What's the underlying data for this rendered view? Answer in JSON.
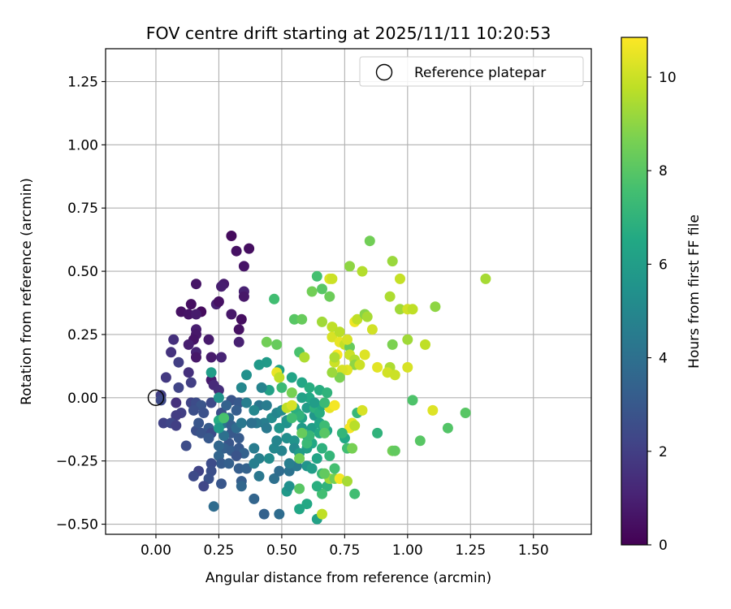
{
  "chart_data": {
    "type": "scatter",
    "title": "FOV centre drift starting at 2025/11/11 10:20:53",
    "xlabel": "Angular distance from reference (arcmin)",
    "ylabel": "Rotation from reference (arcmin)",
    "xlim": [
      -0.2,
      1.73
    ],
    "ylim": [
      -0.54,
      1.38
    ],
    "xticks": [
      "0.00",
      "0.25",
      "0.50",
      "0.75",
      "1.00",
      "1.25",
      "1.50"
    ],
    "yticks": [
      "−0.50",
      "−0.25",
      "0.00",
      "0.25",
      "0.50",
      "0.75",
      "1.00",
      "1.25"
    ],
    "grid": true,
    "legend_position": "top-right",
    "legend_entries": [
      "Reference platepar"
    ],
    "reference_point": {
      "x": 0.0,
      "y": 0.0
    },
    "colorbar": {
      "label": "Hours from first FF file",
      "colormap": "viridis",
      "range": [
        0,
        10.85
      ],
      "ticks": [
        "0",
        "2",
        "4",
        "6",
        "8",
        "10"
      ]
    },
    "points": [
      [
        0.3,
        0.64,
        0.3
      ],
      [
        0.37,
        0.59,
        0.4
      ],
      [
        0.32,
        0.58,
        0.5
      ],
      [
        0.35,
        0.52,
        0.6
      ],
      [
        0.27,
        0.45,
        0.8
      ],
      [
        0.26,
        0.44,
        0.9
      ],
      [
        0.35,
        0.42,
        1.0
      ],
      [
        0.35,
        0.4,
        0.7
      ],
      [
        0.16,
        0.45,
        0.6
      ],
      [
        0.14,
        0.37,
        0.4
      ],
      [
        0.1,
        0.34,
        0.5
      ],
      [
        0.13,
        0.33,
        0.6
      ],
      [
        0.18,
        0.34,
        0.3
      ],
      [
        0.16,
        0.33,
        0.8
      ],
      [
        0.24,
        0.37,
        1.0
      ],
      [
        0.25,
        0.38,
        0.5
      ],
      [
        0.3,
        0.33,
        0.7
      ],
      [
        0.34,
        0.31,
        0.4
      ],
      [
        0.33,
        0.27,
        0.5
      ],
      [
        0.16,
        0.27,
        0.9
      ],
      [
        0.16,
        0.25,
        0.7
      ],
      [
        0.21,
        0.23,
        0.8
      ],
      [
        0.15,
        0.23,
        0.6
      ],
      [
        0.13,
        0.21,
        0.9
      ],
      [
        0.33,
        0.22,
        1.0
      ],
      [
        0.07,
        0.23,
        1.5
      ],
      [
        0.16,
        0.18,
        1.1
      ],
      [
        0.06,
        0.18,
        1.6
      ],
      [
        0.16,
        0.16,
        0.7
      ],
      [
        0.22,
        0.16,
        0.8
      ],
      [
        0.26,
        0.16,
        1.1
      ],
      [
        0.09,
        0.14,
        2.0
      ],
      [
        0.13,
        0.1,
        1.5
      ],
      [
        0.04,
        0.08,
        1.8
      ],
      [
        0.22,
        0.07,
        0.8
      ],
      [
        0.23,
        0.05,
        1.3
      ],
      [
        0.14,
        0.06,
        2.0
      ],
      [
        0.09,
        0.04,
        2.2
      ],
      [
        0.25,
        0.03,
        1.4
      ],
      [
        0.02,
        0.01,
        2.0
      ],
      [
        0.02,
        -0.01,
        2.4
      ],
      [
        0.08,
        -0.02,
        1.5
      ],
      [
        0.14,
        -0.02,
        2.2
      ],
      [
        0.16,
        -0.02,
        2.5
      ],
      [
        0.18,
        -0.03,
        2.8
      ],
      [
        0.15,
        -0.05,
        2.6
      ],
      [
        0.1,
        -0.06,
        2.0
      ],
      [
        0.19,
        -0.06,
        2.7
      ],
      [
        0.22,
        -0.02,
        2.4
      ],
      [
        0.26,
        -0.06,
        2.6
      ],
      [
        0.3,
        -0.01,
        2.8
      ],
      [
        0.33,
        -0.02,
        3.0
      ],
      [
        0.28,
        -0.03,
        3.4
      ],
      [
        0.32,
        -0.05,
        3.2
      ],
      [
        0.08,
        -0.07,
        1.9
      ],
      [
        0.03,
        -0.1,
        2.1
      ],
      [
        0.06,
        -0.1,
        2.3
      ],
      [
        0.08,
        -0.11,
        2.0
      ],
      [
        0.16,
        -0.13,
        2.6
      ],
      [
        0.17,
        -0.1,
        2.9
      ],
      [
        0.21,
        -0.12,
        3.1
      ],
      [
        0.18,
        -0.14,
        2.8
      ],
      [
        0.22,
        -0.14,
        2.5
      ],
      [
        0.26,
        -0.09,
        3.5
      ],
      [
        0.27,
        -0.1,
        4.2
      ],
      [
        0.29,
        -0.08,
        3.7
      ],
      [
        0.3,
        -0.11,
        3.3
      ],
      [
        0.3,
        -0.14,
        3.0
      ],
      [
        0.32,
        -0.12,
        3.8
      ],
      [
        0.34,
        -0.1,
        4.3
      ],
      [
        0.33,
        -0.16,
        3.1
      ],
      [
        0.29,
        -0.18,
        2.9
      ],
      [
        0.27,
        -0.2,
        3.3
      ],
      [
        0.25,
        -0.19,
        3.6
      ],
      [
        0.3,
        -0.21,
        3.2
      ],
      [
        0.33,
        -0.2,
        3.0
      ],
      [
        0.35,
        -0.22,
        3.4
      ],
      [
        0.32,
        -0.23,
        2.8
      ],
      [
        0.25,
        -0.23,
        3.5
      ],
      [
        0.26,
        -0.26,
        3.1
      ],
      [
        0.29,
        -0.26,
        3.3
      ],
      [
        0.33,
        -0.28,
        3.2
      ],
      [
        0.36,
        -0.28,
        3.4
      ],
      [
        0.22,
        -0.26,
        2.5
      ],
      [
        0.22,
        -0.29,
        2.6
      ],
      [
        0.21,
        -0.32,
        2.7
      ],
      [
        0.17,
        -0.29,
        2.2
      ],
      [
        0.15,
        -0.31,
        2.4
      ],
      [
        0.19,
        -0.35,
        2.3
      ],
      [
        0.26,
        -0.34,
        2.9
      ],
      [
        0.34,
        -0.33,
        3.2
      ],
      [
        0.34,
        -0.35,
        3.6
      ],
      [
        0.23,
        -0.43,
        3.8
      ],
      [
        0.39,
        -0.4,
        3.5
      ],
      [
        0.43,
        -0.46,
        3.4
      ],
      [
        0.49,
        -0.46,
        3.8
      ],
      [
        0.12,
        -0.19,
        2.5
      ],
      [
        0.21,
        -0.16,
        3.0
      ],
      [
        0.27,
        -0.15,
        4.0
      ],
      [
        0.39,
        -0.2,
        4.5
      ],
      [
        0.41,
        -0.24,
        4.7
      ],
      [
        0.39,
        -0.26,
        4.6
      ],
      [
        0.41,
        -0.31,
        4.3
      ],
      [
        0.47,
        -0.32,
        4.0
      ],
      [
        0.49,
        -0.29,
        3.8
      ],
      [
        0.53,
        -0.29,
        4.1
      ],
      [
        0.56,
        -0.27,
        4.4
      ],
      [
        0.53,
        -0.26,
        4.6
      ],
      [
        0.5,
        -0.21,
        4.8
      ],
      [
        0.47,
        -0.2,
        5.0
      ],
      [
        0.45,
        -0.24,
        5.2
      ],
      [
        0.48,
        -0.17,
        4.9
      ],
      [
        0.52,
        -0.16,
        5.3
      ],
      [
        0.55,
        -0.17,
        5.5
      ],
      [
        0.55,
        -0.2,
        5.1
      ],
      [
        0.52,
        -0.1,
        5.4
      ],
      [
        0.49,
        -0.12,
        5.6
      ],
      [
        0.46,
        -0.08,
        5.2
      ],
      [
        0.43,
        -0.1,
        4.6
      ],
      [
        0.4,
        -0.1,
        4.4
      ],
      [
        0.38,
        -0.1,
        4.0
      ],
      [
        0.44,
        -0.12,
        4.4
      ],
      [
        0.41,
        -0.03,
        4.2
      ],
      [
        0.44,
        -0.03,
        4.5
      ],
      [
        0.48,
        -0.06,
        4.9
      ],
      [
        0.5,
        -0.05,
        5.1
      ],
      [
        0.52,
        -0.09,
        5.5
      ],
      [
        0.56,
        -0.06,
        5.9
      ],
      [
        0.58,
        -0.08,
        6.2
      ],
      [
        0.6,
        -0.04,
        6.0
      ],
      [
        0.63,
        -0.07,
        5.7
      ],
      [
        0.58,
        -0.12,
        5.8
      ],
      [
        0.6,
        -0.15,
        6.4
      ],
      [
        0.62,
        -0.12,
        6.0
      ],
      [
        0.65,
        -0.1,
        6.3
      ],
      [
        0.65,
        -0.14,
        6.6
      ],
      [
        0.62,
        -0.18,
        6.5
      ],
      [
        0.6,
        -0.2,
        6.1
      ],
      [
        0.57,
        -0.22,
        5.9
      ],
      [
        0.6,
        -0.27,
        5.6
      ],
      [
        0.62,
        -0.28,
        6.0
      ],
      [
        0.64,
        -0.24,
        6.3
      ],
      [
        0.66,
        -0.2,
        6.9
      ],
      [
        0.69,
        -0.23,
        7.1
      ],
      [
        0.66,
        -0.3,
        7.2
      ],
      [
        0.68,
        -0.35,
        7.0
      ],
      [
        0.66,
        -0.38,
        7.5
      ],
      [
        0.64,
        -0.35,
        6.8
      ],
      [
        0.6,
        -0.42,
        6.5
      ],
      [
        0.64,
        -0.48,
        6.2
      ],
      [
        0.57,
        -0.44,
        6.4
      ],
      [
        0.52,
        -0.37,
        5.8
      ],
      [
        0.53,
        -0.35,
        5.4
      ],
      [
        0.69,
        -0.32,
        9.3
      ],
      [
        0.66,
        -0.46,
        9.8
      ],
      [
        0.71,
        -0.32,
        8.5
      ],
      [
        0.73,
        -0.32,
        10.7
      ],
      [
        0.76,
        -0.33,
        9.4
      ],
      [
        0.79,
        -0.38,
        7.5
      ],
      [
        0.71,
        -0.28,
        7.6
      ],
      [
        0.57,
        -0.36,
        8.0
      ],
      [
        0.67,
        -0.3,
        8.2
      ],
      [
        0.6,
        -0.18,
        7.3
      ],
      [
        0.61,
        -0.15,
        7.2
      ],
      [
        0.57,
        -0.24,
        8.5
      ],
      [
        0.58,
        -0.14,
        8.3
      ],
      [
        0.57,
        -0.07,
        7.0
      ],
      [
        0.55,
        -0.04,
        6.8
      ],
      [
        0.54,
        -0.08,
        7.5
      ],
      [
        0.52,
        -0.04,
        9.8
      ],
      [
        0.54,
        -0.03,
        10.2
      ],
      [
        0.63,
        -0.04,
        6.9
      ],
      [
        0.65,
        -0.06,
        6.7
      ],
      [
        0.66,
        -0.03,
        6.5
      ],
      [
        0.69,
        -0.04,
        10.5
      ],
      [
        0.68,
        -0.13,
        6.4
      ],
      [
        0.67,
        -0.11,
        7.4
      ],
      [
        0.67,
        -0.14,
        8.0
      ],
      [
        0.61,
        0.0,
        6.5
      ],
      [
        0.58,
        0.0,
        6.2
      ],
      [
        0.63,
        -0.02,
        6.0
      ],
      [
        0.65,
        0.03,
        6.7
      ],
      [
        0.68,
        0.02,
        7.0
      ],
      [
        0.67,
        -0.02,
        7.3
      ],
      [
        0.58,
        0.06,
        6.4
      ],
      [
        0.61,
        0.04,
        6.7
      ],
      [
        0.54,
        0.08,
        6.3
      ],
      [
        0.49,
        0.11,
        6.2
      ],
      [
        0.44,
        0.14,
        5.9
      ],
      [
        0.48,
        0.1,
        10.5
      ],
      [
        0.49,
        0.08,
        9.8
      ],
      [
        0.54,
        0.02,
        8.6
      ],
      [
        0.5,
        0.04,
        7.3
      ],
      [
        0.45,
        0.03,
        6.2
      ],
      [
        0.36,
        0.09,
        5.4
      ],
      [
        0.34,
        0.04,
        5.0
      ],
      [
        0.41,
        0.13,
        5.8
      ],
      [
        0.42,
        0.04,
        4.8
      ],
      [
        0.36,
        -0.02,
        4.6
      ],
      [
        0.39,
        -0.05,
        5.0
      ],
      [
        0.25,
        -0.09,
        6.6
      ],
      [
        0.27,
        -0.08,
        7.7
      ],
      [
        0.25,
        -0.12,
        5.9
      ],
      [
        0.25,
        0.0,
        5.5
      ],
      [
        0.22,
        0.1,
        6.0
      ],
      [
        0.47,
        0.39,
        7.5
      ],
      [
        0.44,
        0.22,
        8.5
      ],
      [
        0.48,
        0.21,
        8.3
      ],
      [
        0.57,
        0.18,
        7.7
      ],
      [
        0.59,
        0.16,
        9.5
      ],
      [
        0.55,
        0.31,
        8.0
      ],
      [
        0.58,
        0.31,
        8.3
      ],
      [
        0.64,
        0.48,
        7.6
      ],
      [
        0.66,
        0.43,
        8.0
      ],
      [
        0.62,
        0.42,
        8.5
      ],
      [
        0.69,
        0.47,
        10.3
      ],
      [
        0.7,
        0.47,
        10.0
      ],
      [
        0.69,
        0.4,
        8.4
      ],
      [
        0.66,
        0.3,
        9.3
      ],
      [
        0.7,
        0.28,
        9.8
      ],
      [
        0.7,
        0.24,
        10.2
      ],
      [
        0.73,
        0.26,
        9.7
      ],
      [
        0.73,
        0.22,
        10.5
      ],
      [
        0.75,
        0.21,
        9.9
      ],
      [
        0.77,
        0.2,
        8.3
      ],
      [
        0.76,
        0.23,
        10.2
      ],
      [
        0.77,
        0.17,
        10.0
      ],
      [
        0.79,
        0.15,
        9.6
      ],
      [
        0.79,
        0.3,
        10.6
      ],
      [
        0.8,
        0.31,
        9.8
      ],
      [
        0.83,
        0.33,
        8.9
      ],
      [
        0.84,
        0.32,
        9.4
      ],
      [
        0.86,
        0.27,
        10.1
      ],
      [
        0.77,
        0.52,
        9.0
      ],
      [
        0.82,
        0.5,
        9.6
      ],
      [
        0.85,
        0.62,
        8.5
      ],
      [
        0.94,
        0.54,
        9.2
      ],
      [
        0.93,
        0.4,
        9.5
      ],
      [
        0.97,
        0.47,
        9.9
      ],
      [
        0.97,
        0.35,
        9.3
      ],
      [
        1.0,
        0.35,
        10.1
      ],
      [
        1.02,
        0.35,
        9.8
      ],
      [
        1.11,
        0.36,
        9.0
      ],
      [
        1.31,
        0.47,
        9.4
      ],
      [
        0.94,
        0.21,
        8.7
      ],
      [
        1.0,
        0.23,
        9.3
      ],
      [
        1.07,
        0.21,
        9.8
      ],
      [
        0.83,
        0.17,
        10.3
      ],
      [
        0.79,
        0.13,
        9.0
      ],
      [
        0.76,
        0.11,
        10.4
      ],
      [
        0.72,
        0.17,
        10.8
      ],
      [
        0.71,
        0.14,
        10.0
      ],
      [
        0.71,
        0.16,
        9.5
      ],
      [
        0.74,
        0.11,
        10.2
      ],
      [
        0.73,
        0.08,
        8.7
      ],
      [
        0.7,
        0.1,
        9.2
      ],
      [
        0.81,
        0.13,
        10.0
      ],
      [
        0.88,
        0.12,
        10.4
      ],
      [
        0.93,
        0.12,
        9.5
      ],
      [
        0.92,
        0.1,
        10.1
      ],
      [
        0.95,
        0.09,
        10.0
      ],
      [
        1.0,
        0.12,
        10.2
      ],
      [
        1.02,
        -0.01,
        7.8
      ],
      [
        1.1,
        -0.05,
        10.3
      ],
      [
        1.23,
        -0.06,
        8.0
      ],
      [
        1.16,
        -0.12,
        7.9
      ],
      [
        1.05,
        -0.17,
        8.0
      ],
      [
        0.94,
        -0.21,
        8.5
      ],
      [
        0.95,
        -0.21,
        8.2
      ],
      [
        0.88,
        -0.14,
        7.0
      ],
      [
        0.8,
        -0.06,
        7.2
      ],
      [
        0.82,
        -0.05,
        10.2
      ],
      [
        0.78,
        -0.1,
        10.5
      ],
      [
        0.77,
        -0.12,
        10.7
      ],
      [
        0.79,
        -0.11,
        9.7
      ],
      [
        0.75,
        -0.16,
        6.5
      ],
      [
        0.76,
        -0.2,
        7.5
      ],
      [
        0.78,
        -0.2,
        8.6
      ],
      [
        0.74,
        -0.14,
        7.1
      ],
      [
        0.71,
        -0.03,
        10.7
      ]
    ]
  }
}
